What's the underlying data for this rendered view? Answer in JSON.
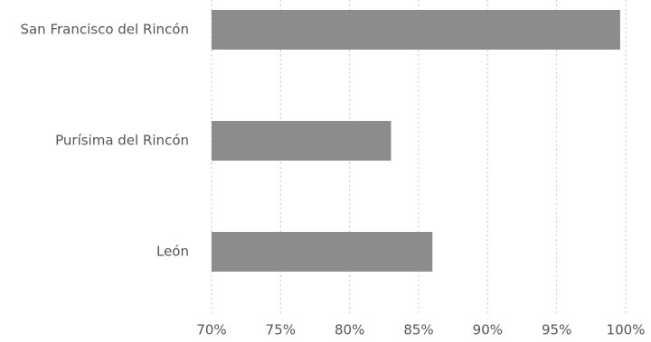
{
  "chart_data": {
    "type": "hbar",
    "categories": [
      "San Francisco del Rincón",
      "Purísima del Rincón",
      "León"
    ],
    "values": [
      99.6,
      83,
      86
    ],
    "color": "#8c8c8c",
    "xlim": [
      70,
      100
    ],
    "xticks": [
      {
        "value": 70,
        "label": "70%"
      },
      {
        "value": 75,
        "label": "75%"
      },
      {
        "value": 80,
        "label": "80%"
      },
      {
        "value": 85,
        "label": "85%"
      },
      {
        "value": 90,
        "label": "90%"
      },
      {
        "value": 95,
        "label": "95%"
      },
      {
        "value": 100,
        "label": "100%"
      }
    ],
    "grid": true
  }
}
